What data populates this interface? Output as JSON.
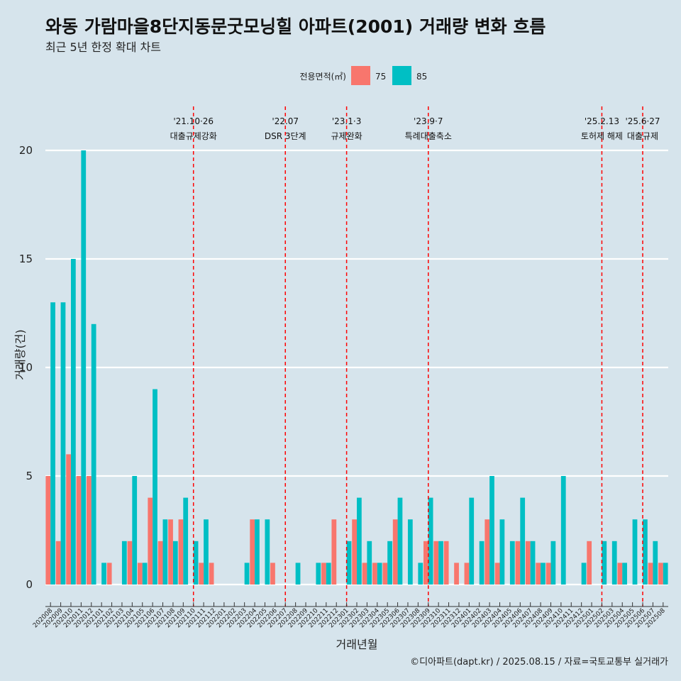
{
  "header": {
    "title": "와동 가람마을8단지동문굿모닝힐 아파트(2001) 거래량 변화 흐름",
    "subtitle": "최근 5년 한정 확대 차트",
    "caption": "©디아파트(dapt.kr) / 2025.08.15 / 자료=국토교통부 실거래가"
  },
  "chart_data": {
    "type": "bar",
    "xlabel": "거래년월",
    "ylabel": "거래량(건)",
    "ylim": [
      0,
      20
    ],
    "yticks": [
      0,
      5,
      10,
      15,
      20
    ],
    "legend": {
      "title": "전용면적(㎡)",
      "position": "top"
    },
    "categories": [
      "202008",
      "202009",
      "202010",
      "202011",
      "202012",
      "202101",
      "202102",
      "202103",
      "202104",
      "202105",
      "202106",
      "202107",
      "202108",
      "202109",
      "202110",
      "202111",
      "202112",
      "202201",
      "202202",
      "202203",
      "202204",
      "202205",
      "202206",
      "202207",
      "202208",
      "202209",
      "202210",
      "202211",
      "202212",
      "202301",
      "202302",
      "202303",
      "202304",
      "202305",
      "202306",
      "202307",
      "202308",
      "202309",
      "202310",
      "202311",
      "202312",
      "202401",
      "202402",
      "202403",
      "202404",
      "202405",
      "202406",
      "202407",
      "202408",
      "202409",
      "202410",
      "202411",
      "202412",
      "202501",
      "202502",
      "202503",
      "202504",
      "202505",
      "202506",
      "202507",
      "202508"
    ],
    "series": [
      {
        "name": "75",
        "color": "#f8766d",
        "values": [
          5,
          2,
          6,
          5,
          5,
          0,
          1,
          0,
          2,
          1,
          4,
          2,
          3,
          3,
          0,
          1,
          1,
          0,
          0,
          0,
          3,
          0,
          1,
          0,
          0,
          0,
          0,
          1,
          3,
          0,
          3,
          1,
          1,
          1,
          3,
          0,
          0,
          2,
          2,
          2,
          1,
          1,
          0,
          3,
          1,
          0,
          2,
          2,
          1,
          1,
          0,
          0,
          0,
          2,
          0,
          0,
          1,
          0,
          0,
          1,
          1
        ]
      },
      {
        "name": "85",
        "color": "#00bfc4",
        "values": [
          13,
          13,
          15,
          20,
          12,
          1,
          0,
          2,
          5,
          1,
          9,
          3,
          2,
          4,
          2,
          3,
          0,
          0,
          0,
          1,
          3,
          3,
          0,
          0,
          1,
          0,
          1,
          1,
          0,
          2,
          4,
          2,
          1,
          2,
          4,
          3,
          1,
          4,
          2,
          0,
          0,
          4,
          2,
          5,
          3,
          2,
          4,
          2,
          1,
          2,
          5,
          0,
          1,
          0,
          2,
          2,
          1,
          3,
          3,
          2,
          1
        ]
      }
    ],
    "annotations": [
      {
        "month": "202110",
        "date": "'21.10·26",
        "label": "대출규제강화"
      },
      {
        "month": "202207",
        "date": "'22.07",
        "label": "DSR 3단계"
      },
      {
        "month": "202301",
        "date": "'23.1·3",
        "label": "규제완화"
      },
      {
        "month": "202309",
        "date": "'23.9·7",
        "label": "특례대출축소"
      },
      {
        "month": "202502",
        "date": "'25.2.13",
        "label": "토허제 해제"
      },
      {
        "month": "202506",
        "date": "'25.6·27",
        "label": "대출규제"
      }
    ]
  }
}
